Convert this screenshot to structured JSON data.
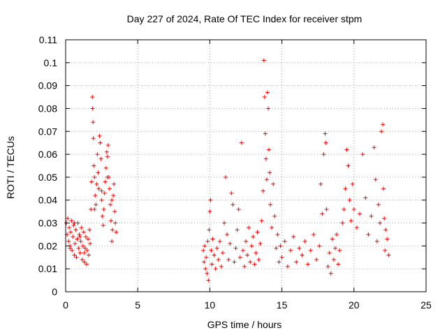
{
  "chart_data": {
    "type": "scatter",
    "title": "Day 227 of 2024, Rate Of TEC Index for receiver stpm",
    "xlabel": "GPS time / hours",
    "ylabel": "ROTI / TECUs",
    "xlim": [
      0,
      25
    ],
    "ylim": [
      0,
      0.11
    ],
    "x_ticks": [
      0,
      5,
      10,
      15,
      20,
      25
    ],
    "x_tick_labels": [
      "0",
      "5",
      "10",
      "15",
      "20",
      "25"
    ],
    "y_ticks": [
      0,
      0.01,
      0.02,
      0.03,
      0.04,
      0.05,
      0.06,
      0.07,
      0.08,
      0.09,
      0.1,
      0.11
    ],
    "y_tick_labels": [
      "0",
      "0.01",
      "0.02",
      "0.03",
      "0.04",
      "0.05",
      "0.06",
      "0.07",
      "0.08",
      "0.09",
      "0.1",
      "0.11"
    ],
    "grid": true,
    "marker": "plus",
    "color": "#ff0000",
    "series": [
      {
        "points": [
          [
            0.05,
            0.03
          ],
          [
            0.1,
            0.025
          ],
          [
            0.15,
            0.032
          ],
          [
            0.2,
            0.022
          ],
          [
            0.25,
            0.028
          ],
          [
            0.3,
            0.019
          ],
          [
            0.35,
            0.026
          ],
          [
            0.4,
            0.031
          ],
          [
            0.45,
            0.018
          ],
          [
            0.5,
            0.024
          ],
          [
            0.55,
            0.029
          ],
          [
            0.6,
            0.016
          ],
          [
            0.65,
            0.021
          ],
          [
            0.7,
            0.027
          ],
          [
            0.75,
            0.015
          ],
          [
            0.8,
            0.023
          ],
          [
            0.85,
            0.03
          ],
          [
            0.9,
            0.019
          ],
          [
            0.95,
            0.025
          ],
          [
            1.0,
            0.017
          ],
          [
            1.05,
            0.022
          ],
          [
            1.1,
            0.028
          ],
          [
            1.15,
            0.014
          ],
          [
            1.2,
            0.02
          ],
          [
            1.25,
            0.026
          ],
          [
            1.3,
            0.013
          ],
          [
            1.35,
            0.019
          ],
          [
            1.4,
            0.024
          ],
          [
            1.45,
            0.012
          ],
          [
            1.5,
            0.018
          ],
          [
            1.55,
            0.023
          ],
          [
            1.6,
            0.016
          ],
          [
            1.65,
            0.027
          ],
          [
            1.7,
            0.021
          ],
          [
            1.75,
            0.036
          ],
          [
            1.8,
            0.048
          ],
          [
            1.85,
            0.085
          ],
          [
            1.87,
            0.08
          ],
          [
            1.9,
            0.074
          ],
          [
            1.92,
            0.067
          ],
          [
            1.95,
            0.055
          ],
          [
            2.0,
            0.05
          ],
          [
            2.05,
            0.042
          ],
          [
            2.1,
            0.038
          ],
          [
            2.15,
            0.047
          ],
          [
            2.2,
            0.06
          ],
          [
            2.25,
            0.052
          ],
          [
            2.3,
            0.045
          ],
          [
            2.35,
            0.068
          ],
          [
            2.4,
            0.065
          ],
          [
            2.45,
            0.058
          ],
          [
            2.5,
            0.04
          ],
          [
            2.55,
            0.033
          ],
          [
            2.6,
            0.029
          ],
          [
            2.65,
            0.036
          ],
          [
            2.7,
            0.043
          ],
          [
            2.75,
            0.048
          ],
          [
            2.8,
            0.054
          ],
          [
            2.85,
            0.061
          ],
          [
            2.9,
            0.059
          ],
          [
            2.95,
            0.064
          ],
          [
            3.0,
            0.05
          ],
          [
            3.05,
            0.045
          ],
          [
            3.1,
            0.038
          ],
          [
            3.15,
            0.031
          ],
          [
            3.2,
            0.022
          ],
          [
            3.25,
            0.027
          ],
          [
            3.3,
            0.042
          ],
          [
            3.35,
            0.047
          ],
          [
            3.4,
            0.035
          ],
          [
            3.45,
            0.03
          ],
          [
            3.5,
            0.026
          ],
          [
            0.3,
            0.02
          ],
          [
            0.6,
            0.03
          ],
          [
            1.0,
            0.024
          ],
          [
            1.3,
            0.017
          ],
          [
            2.0,
            0.036
          ],
          [
            2.5,
            0.044
          ],
          [
            2.9,
            0.05
          ],
          [
            3.2,
            0.04
          ],
          [
            9.55,
            0.018
          ],
          [
            9.6,
            0.013
          ],
          [
            9.65,
            0.02
          ],
          [
            9.7,
            0.01
          ],
          [
            9.75,
            0.015
          ],
          [
            9.8,
            0.008
          ],
          [
            9.85,
            0.022
          ],
          [
            9.9,
            0.005
          ],
          [
            9.95,
            0.027
          ],
          [
            10.0,
            0.035
          ],
          [
            10.05,
            0.04
          ],
          [
            10.1,
            0.018
          ],
          [
            10.15,
            0.012
          ],
          [
            10.2,
            0.023
          ],
          [
            10.3,
            0.016
          ],
          [
            10.4,
            0.01
          ],
          [
            10.5,
            0.019
          ],
          [
            10.6,
            0.014
          ],
          [
            10.7,
            0.022
          ],
          [
            10.8,
            0.011
          ],
          [
            10.9,
            0.017
          ],
          [
            11.0,
            0.03
          ],
          [
            11.1,
            0.05
          ],
          [
            11.2,
            0.025
          ],
          [
            11.3,
            0.014
          ],
          [
            11.4,
            0.021
          ],
          [
            11.5,
            0.043
          ],
          [
            11.6,
            0.038
          ],
          [
            11.7,
            0.013
          ],
          [
            11.8,
            0.019
          ],
          [
            11.9,
            0.027
          ],
          [
            12.0,
            0.036
          ],
          [
            12.1,
            0.015
          ],
          [
            12.2,
            0.065
          ],
          [
            12.3,
            0.018
          ],
          [
            12.4,
            0.011
          ],
          [
            12.5,
            0.022
          ],
          [
            12.6,
            0.016
          ],
          [
            12.7,
            0.028
          ],
          [
            12.8,
            0.013
          ],
          [
            12.9,
            0.02
          ],
          [
            13.0,
            0.024
          ],
          [
            13.1,
            0.012
          ],
          [
            13.2,
            0.017
          ],
          [
            13.3,
            0.026
          ],
          [
            13.4,
            0.014
          ],
          [
            13.5,
            0.021
          ],
          [
            13.6,
            0.031
          ],
          [
            13.7,
            0.044
          ],
          [
            13.75,
            0.101
          ],
          [
            13.8,
            0.085
          ],
          [
            13.85,
            0.069
          ],
          [
            13.9,
            0.058
          ],
          [
            13.95,
            0.049
          ],
          [
            14.0,
            0.087
          ],
          [
            14.05,
            0.08
          ],
          [
            14.1,
            0.062
          ],
          [
            14.15,
            0.052
          ],
          [
            14.2,
            0.038
          ],
          [
            14.3,
            0.028
          ],
          [
            14.4,
            0.047
          ],
          [
            14.5,
            0.033
          ],
          [
            14.6,
            0.019
          ],
          [
            14.7,
            0.025
          ],
          [
            14.8,
            0.013
          ],
          [
            14.9,
            0.02
          ],
          [
            15.0,
            0.015
          ],
          [
            15.2,
            0.022
          ],
          [
            15.4,
            0.011
          ],
          [
            15.6,
            0.018
          ],
          [
            15.8,
            0.024
          ],
          [
            16.0,
            0.013
          ],
          [
            16.2,
            0.019
          ],
          [
            16.4,
            0.016
          ],
          [
            16.6,
            0.022
          ],
          [
            16.8,
            0.012
          ],
          [
            17.0,
            0.018
          ],
          [
            17.2,
            0.025
          ],
          [
            17.4,
            0.014
          ],
          [
            17.6,
            0.02
          ],
          [
            17.7,
            0.047
          ],
          [
            17.8,
            0.034
          ],
          [
            17.9,
            0.06
          ],
          [
            18.0,
            0.069
          ],
          [
            18.05,
            0.065
          ],
          [
            18.1,
            0.036
          ],
          [
            18.2,
            0.011
          ],
          [
            18.3,
            0.017
          ],
          [
            18.4,
            0.008
          ],
          [
            18.5,
            0.023
          ],
          [
            18.6,
            0.014
          ],
          [
            18.7,
            0.019
          ],
          [
            18.8,
            0.025
          ],
          [
            18.9,
            0.012
          ],
          [
            19.0,
            0.018
          ],
          [
            19.2,
            0.03
          ],
          [
            19.3,
            0.036
          ],
          [
            19.4,
            0.045
          ],
          [
            19.5,
            0.062
          ],
          [
            19.6,
            0.055
          ],
          [
            19.7,
            0.04
          ],
          [
            19.8,
            0.031
          ],
          [
            19.9,
            0.047
          ],
          [
            20.0,
            0.036
          ],
          [
            20.2,
            0.028
          ],
          [
            20.4,
            0.034
          ],
          [
            20.6,
            0.06
          ],
          [
            20.8,
            0.041
          ],
          [
            21.0,
            0.025
          ],
          [
            21.2,
            0.033
          ],
          [
            21.4,
            0.063
          ],
          [
            21.5,
            0.049
          ],
          [
            21.6,
            0.022
          ],
          [
            21.7,
            0.038
          ],
          [
            21.8,
            0.03
          ],
          [
            21.9,
            0.07
          ],
          [
            22.0,
            0.073
          ],
          [
            22.05,
            0.045
          ],
          [
            22.1,
            0.032
          ],
          [
            22.15,
            0.018
          ],
          [
            22.2,
            0.027
          ],
          [
            22.3,
            0.023
          ],
          [
            22.4,
            0.016
          ]
        ]
      }
    ]
  }
}
